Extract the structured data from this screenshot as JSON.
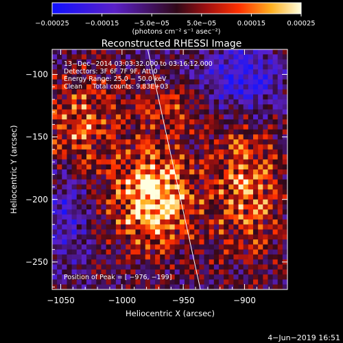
{
  "chart_data": {
    "type": "heatmap",
    "title": "Reconstructed RHESSI Image",
    "xlabel": "Heliocentric X (arcsec)",
    "ylabel": "Heliocentric Y (arcsec)",
    "xlim": [
      -1057,
      -865
    ],
    "ylim": [
      -272,
      -80
    ],
    "x_ticks": [
      -1050,
      -1000,
      -950,
      -900
    ],
    "x_tick_labels": [
      "−1050",
      "−1000",
      "−950",
      "−900"
    ],
    "y_ticks": [
      -100,
      -150,
      -200,
      -250
    ],
    "y_tick_labels": [
      "−100",
      "−150",
      "−200",
      "−250"
    ],
    "colorbar": {
      "range": [
        -0.00025,
        0.00025
      ],
      "tick_labels": [
        "−0.00025",
        "−0.00015",
        "−5.0e−05",
        "5.0e−05",
        "0.00015",
        "0.00025"
      ],
      "unit_label": "(photons cm⁻² s⁻¹ asec⁻²)"
    },
    "annotations": [
      "13−Dec−2014 03:03:32.000 to 03:16:12.000",
      "Detectors: 3F 6F 7F 9F, Att 0",
      "Energy Range: 25.0 − 50.0 keV",
      "Clean     Total counts: 9.83E+03"
    ],
    "peak_label": "Position of Peak = [ −976, −199]",
    "peak": {
      "x": -976,
      "y": -199
    },
    "limb_line": [
      {
        "x": -979,
        "y": -80
      },
      {
        "x": -936,
        "y": -272
      }
    ],
    "grid": false,
    "legend": "none"
  },
  "timestamp": "4−Jun−2019 16:51",
  "colors": {
    "background": "#000000",
    "text": "#ffffff",
    "limb": "#ffffff"
  }
}
